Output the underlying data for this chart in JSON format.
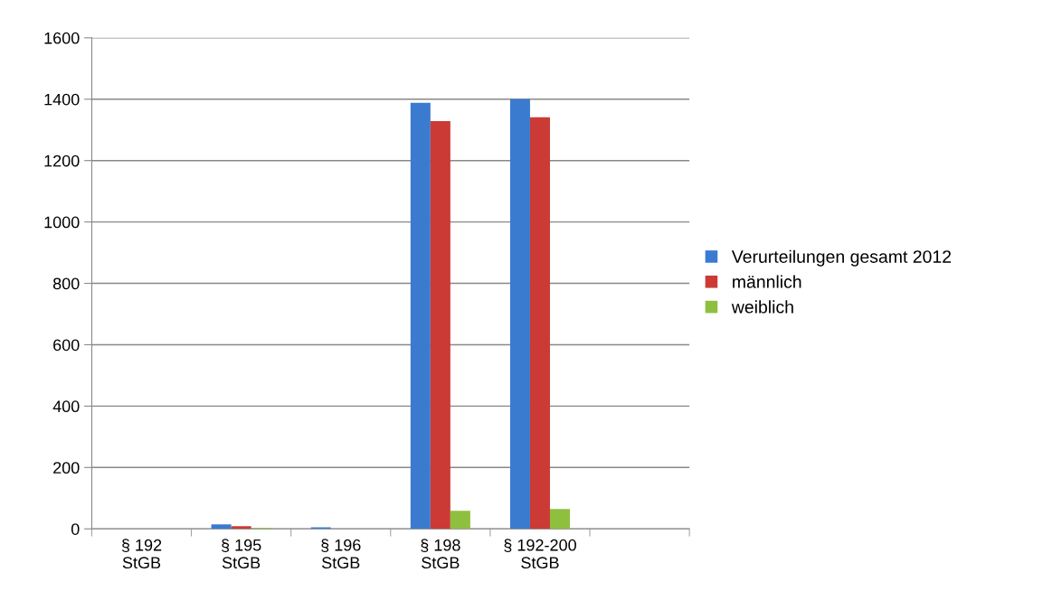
{
  "chart_data": {
    "type": "bar",
    "categories": [
      "§ 192\nStGB",
      "§ 195\nStGB",
      "§ 196\nStGB",
      "§ 198\nStGB",
      "§ 192-200\nStGB",
      null
    ],
    "series": [
      {
        "name": "Verurteilungen gesamt 2012",
        "color": "#3a7bd0",
        "values": [
          0,
          15,
          5,
          1388,
          1400,
          null
        ]
      },
      {
        "name": "männlich",
        "color": "#cc3a36",
        "values": [
          0,
          9,
          0,
          1329,
          1341,
          null
        ]
      },
      {
        "name": "weiblich",
        "color": "#8fbf3f",
        "values": [
          0,
          3,
          0,
          59,
          65,
          null
        ]
      }
    ],
    "ylim": [
      0,
      1600
    ],
    "yticks": [
      0,
      200,
      400,
      600,
      800,
      1000,
      1200,
      1400,
      1600
    ],
    "grid": "y",
    "legend": "right"
  }
}
